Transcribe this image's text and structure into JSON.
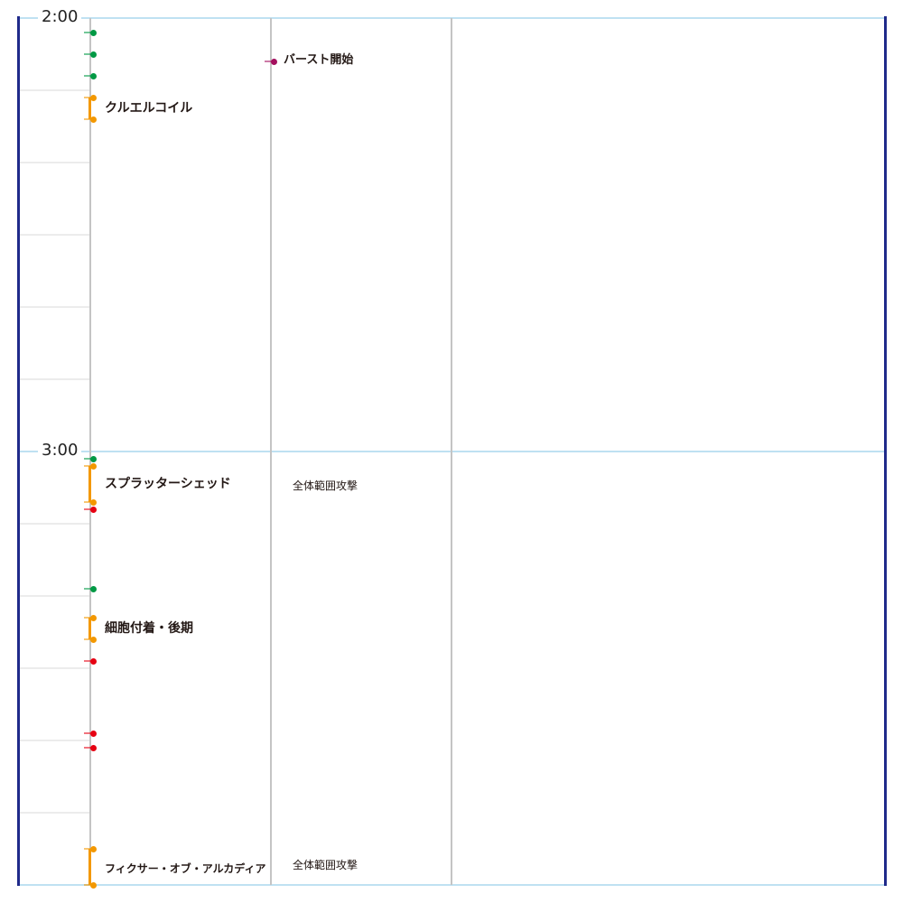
{
  "timeline": {
    "time_labels": [
      {
        "text": "2:00",
        "seconds": 120
      },
      {
        "text": "3:00",
        "seconds": 180
      }
    ],
    "start_seconds": 120,
    "end_seconds": 240,
    "colors": {
      "green": "#009944",
      "orange": "#f39800",
      "red": "#e60012",
      "purple": "#a40f5e",
      "navy": "#1f2a8a",
      "grid_blue": "#bfe1f2"
    },
    "column1_events": [
      {
        "type": "point",
        "color": "green",
        "seconds": 122
      },
      {
        "type": "point",
        "color": "green",
        "seconds": 125
      },
      {
        "type": "point",
        "color": "green",
        "seconds": 128
      },
      {
        "type": "cast",
        "color": "orange",
        "start": 131,
        "end": 134,
        "label": "クルエルコイル"
      },
      {
        "type": "point",
        "color": "green",
        "seconds": 181
      },
      {
        "type": "cast",
        "color": "orange",
        "start": 182,
        "end": 187,
        "label": "スプラッターシェッド",
        "note": "全体範囲攻撃"
      },
      {
        "type": "point",
        "color": "red",
        "seconds": 188
      },
      {
        "type": "point",
        "color": "green",
        "seconds": 199
      },
      {
        "type": "cast",
        "color": "orange",
        "start": 203,
        "end": 206,
        "label": "細胞付着・後期"
      },
      {
        "type": "point",
        "color": "red",
        "seconds": 209
      },
      {
        "type": "point",
        "color": "red",
        "seconds": 219
      },
      {
        "type": "point",
        "color": "red",
        "seconds": 221
      },
      {
        "type": "cast",
        "color": "orange",
        "start": 235,
        "end": 240,
        "label": "フィクサー・オブ・アルカディア",
        "note": "全体範囲攻撃"
      }
    ],
    "column2_events": [
      {
        "type": "point",
        "color": "purple",
        "seconds": 126,
        "label": "バースト開始"
      }
    ]
  }
}
